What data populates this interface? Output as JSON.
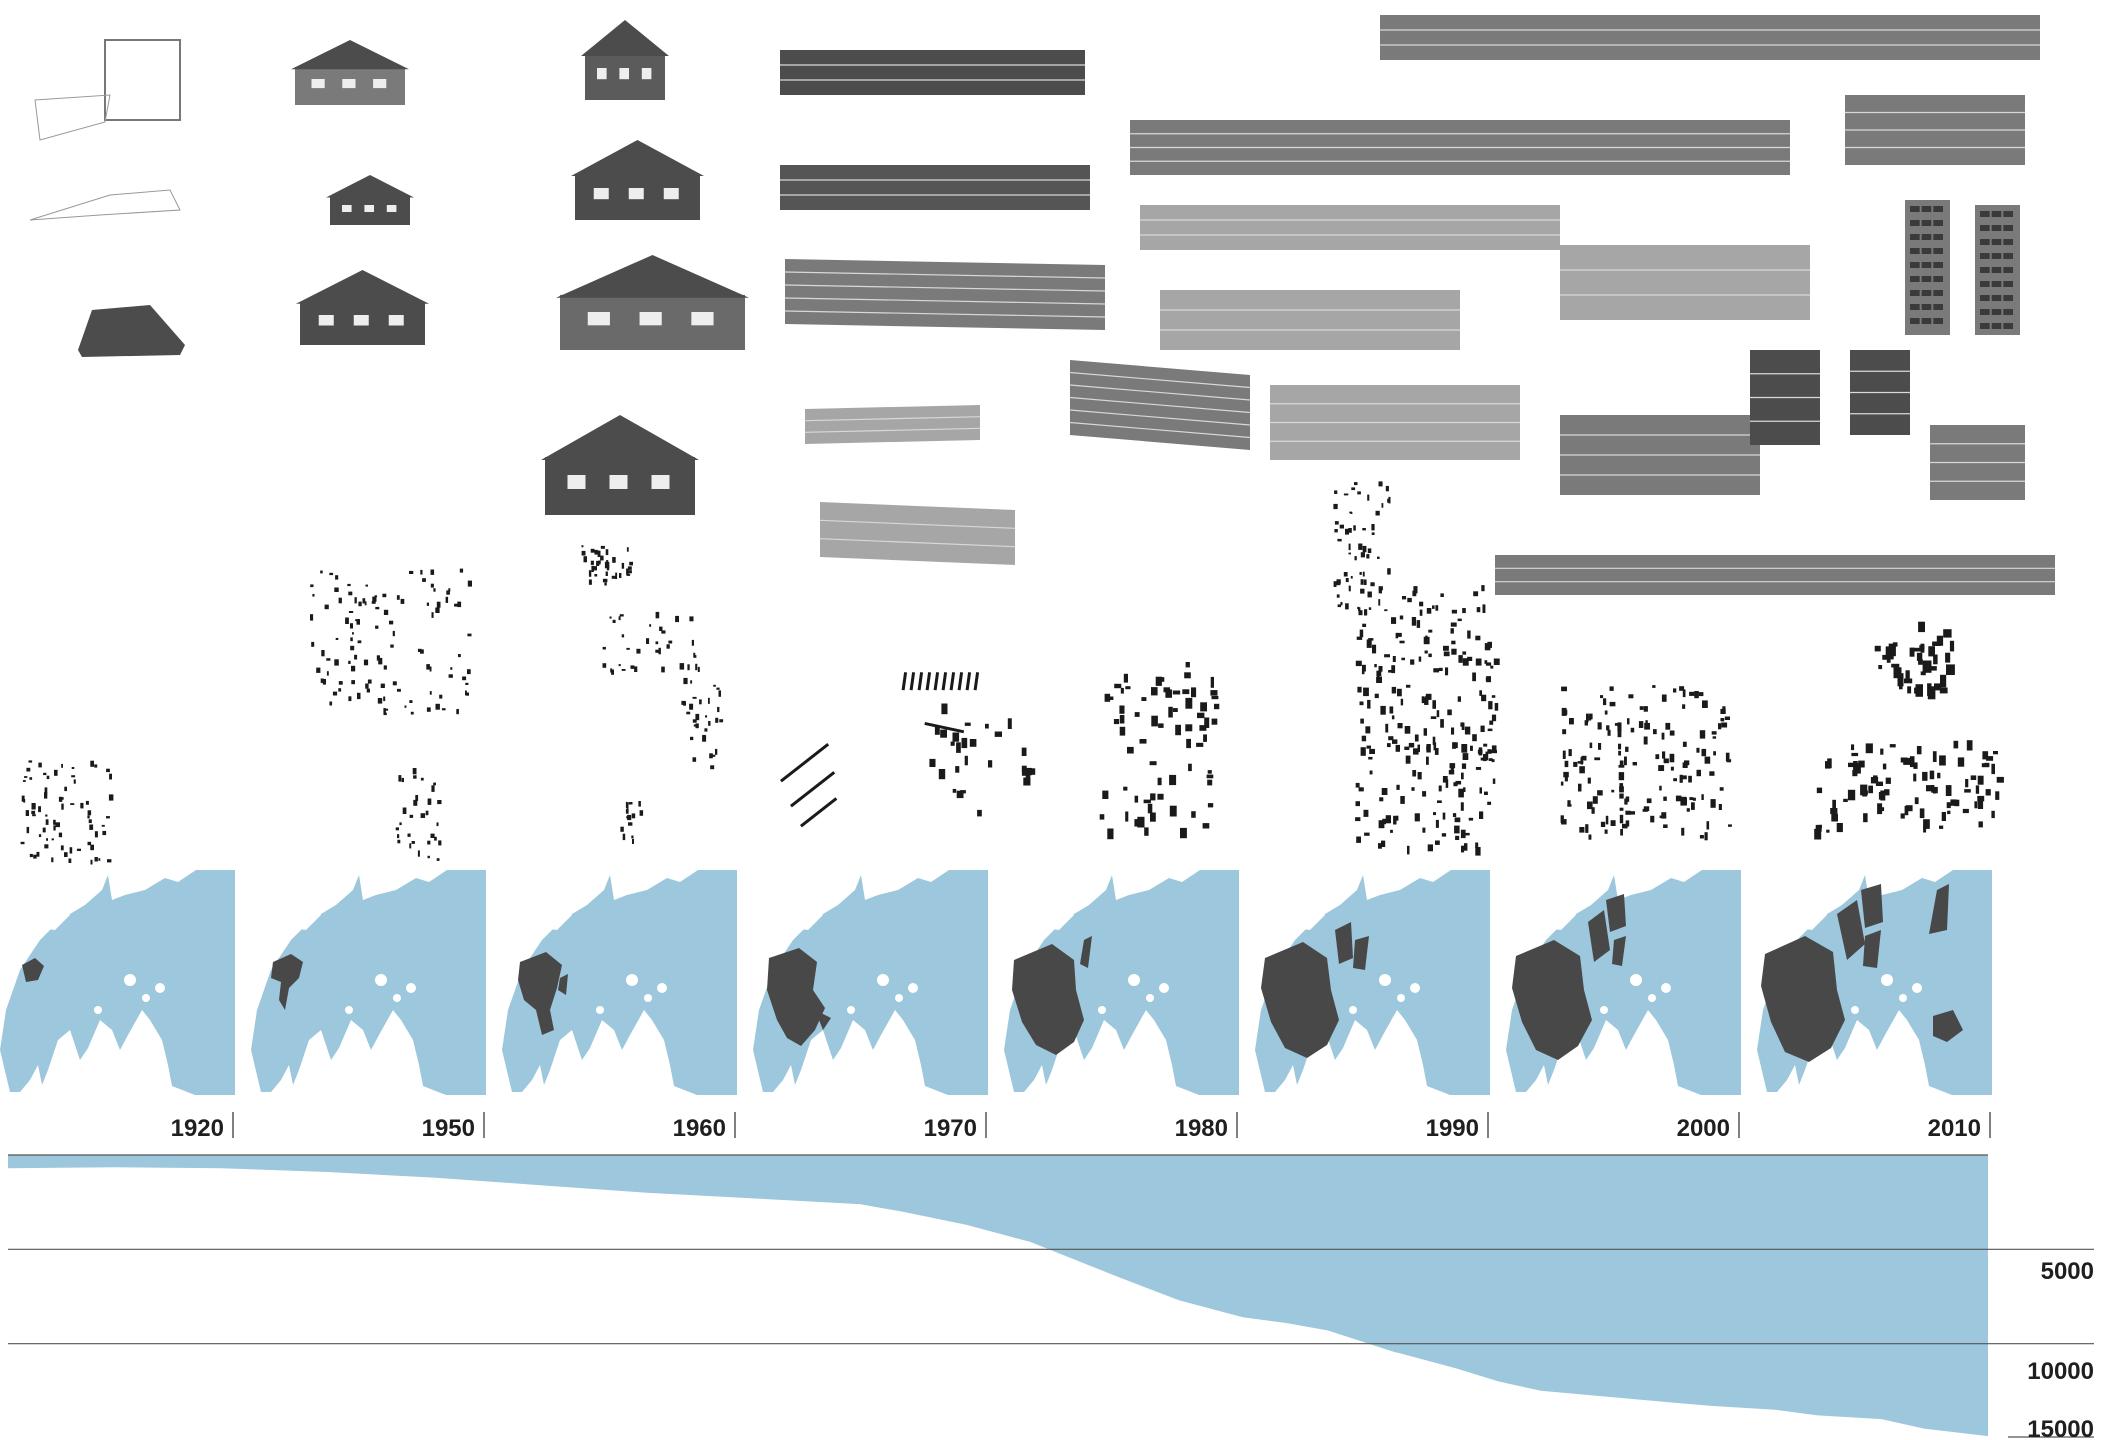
{
  "colors": {
    "water": "#9cc7dc",
    "built": "#484848",
    "building_dark": "#4c4c4c",
    "building_mid": "#7a7a7a",
    "building_light": "#a6a6a6",
    "text": "#1f1f1f"
  },
  "decades": [
    "1920",
    "1950",
    "1960",
    "1970",
    "1980",
    "1990",
    "2000",
    "2010"
  ],
  "chart_data": {
    "type": "area",
    "title": "",
    "xlabel": "",
    "ylabel": "",
    "y_axis": {
      "tick_labels": [
        "5000",
        "10000",
        "15000"
      ],
      "ylim": [
        0,
        15000
      ],
      "inverted": true
    },
    "x_axis": {
      "tick_labels": [
        "1920",
        "1950",
        "1960",
        "1970",
        "1980",
        "1990",
        "2000",
        "2010"
      ],
      "xlim": [
        1920,
        2013
      ]
    },
    "series": [
      {
        "x": [
          1920,
          1925,
          1930,
          1935,
          1940,
          1945,
          1950,
          1955,
          1960,
          1962,
          1965,
          1968,
          1970,
          1972,
          1975,
          1978,
          1980,
          1982,
          1985,
          1988,
          1990,
          1992,
          1995,
          1998,
          2000,
          2003,
          2005,
          2008,
          2010,
          2013
        ],
        "values": [
          700,
          650,
          700,
          900,
          1200,
          1600,
          2000,
          2300,
          2600,
          3000,
          3700,
          4600,
          5500,
          6400,
          7700,
          8600,
          8900,
          9300,
          10400,
          11300,
          12000,
          12500,
          12800,
          13100,
          13300,
          13500,
          13800,
          14000,
          14500,
          14900
        ]
      }
    ]
  }
}
